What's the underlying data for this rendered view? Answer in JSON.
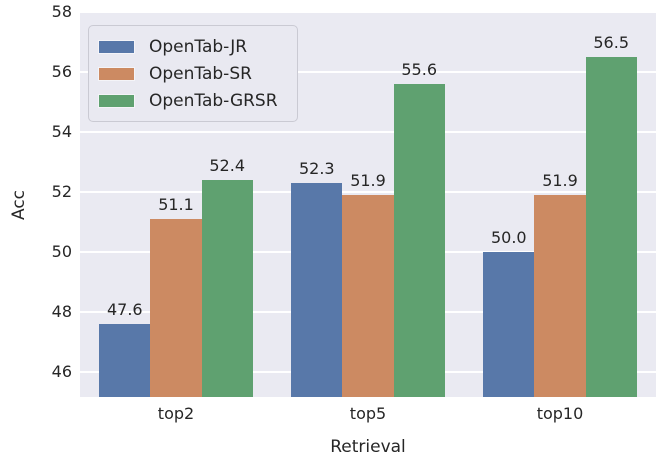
{
  "chart_data": {
    "type": "bar",
    "categories": [
      "top2",
      "top5",
      "top10"
    ],
    "series": [
      {
        "name": "OpenTab-JR",
        "color": "#5878A9",
        "values": [
          47.6,
          52.3,
          50.0
        ],
        "labels": [
          "47.6",
          "52.3",
          "50.0"
        ]
      },
      {
        "name": "OpenTab-SR",
        "color": "#CC8A62",
        "values": [
          51.1,
          51.9,
          51.9
        ],
        "labels": [
          "51.1",
          "51.9",
          "51.9"
        ]
      },
      {
        "name": "OpenTab-GRSR",
        "color": "#5FA170",
        "values": [
          52.4,
          55.6,
          56.5
        ],
        "labels": [
          "52.4",
          "55.6",
          "56.5"
        ]
      }
    ],
    "title": "",
    "xlabel": "Retrieval",
    "ylabel": "Acc",
    "ylim": [
      45.1667,
      58
    ],
    "yticks": [
      46,
      48,
      50,
      52,
      54,
      56,
      58
    ],
    "grid": "horizontal-white",
    "legend_position": "upper-left",
    "plot_background": "#eaeaf2",
    "text_color": "#262626"
  }
}
